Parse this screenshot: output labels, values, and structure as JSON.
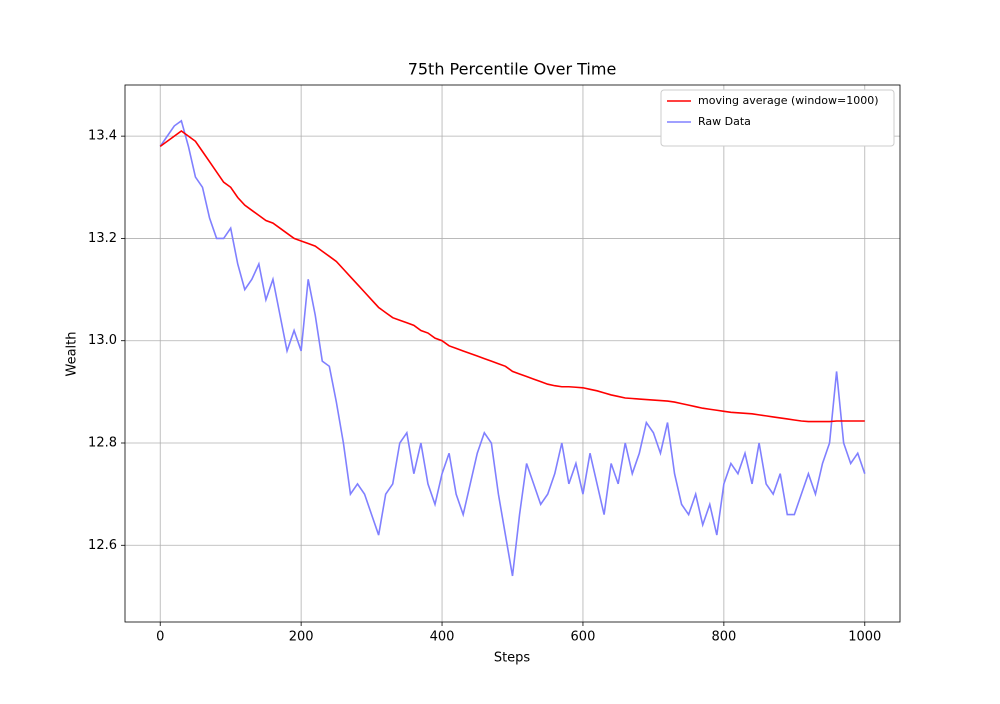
{
  "chart_data": {
    "type": "line",
    "title": "75th Percentile Over Time",
    "x_label": "Steps",
    "y_label": "Wealth",
    "x": [
      0,
      10,
      20,
      30,
      40,
      50,
      60,
      70,
      80,
      90,
      100,
      110,
      120,
      130,
      140,
      150,
      160,
      170,
      180,
      190,
      200,
      210,
      220,
      230,
      240,
      250,
      260,
      270,
      280,
      290,
      300,
      310,
      320,
      330,
      340,
      350,
      360,
      370,
      380,
      390,
      400,
      410,
      420,
      430,
      440,
      450,
      460,
      470,
      480,
      490,
      500,
      510,
      520,
      530,
      540,
      550,
      560,
      570,
      580,
      590,
      600,
      610,
      620,
      630,
      640,
      650,
      660,
      670,
      680,
      690,
      700,
      710,
      720,
      730,
      740,
      750,
      760,
      770,
      780,
      790,
      800,
      810,
      820,
      830,
      840,
      850,
      860,
      870,
      880,
      890,
      900,
      910,
      920,
      930,
      940,
      950,
      960,
      970,
      980,
      990,
      1000
    ],
    "series": [
      {
        "name": "moving average (window=1000)",
        "color": "#ff0000",
        "values": [
          13.38,
          13.39,
          13.4,
          13.41,
          13.4,
          13.39,
          13.37,
          13.35,
          13.33,
          13.31,
          13.3,
          13.28,
          13.265,
          13.255,
          13.245,
          13.235,
          13.23,
          13.22,
          13.21,
          13.2,
          13.195,
          13.19,
          13.185,
          13.175,
          13.165,
          13.155,
          13.14,
          13.125,
          13.11,
          13.095,
          13.08,
          13.065,
          13.055,
          13.045,
          13.04,
          13.035,
          13.03,
          13.02,
          13.015,
          13.005,
          13.0,
          12.99,
          12.985,
          12.98,
          12.975,
          12.97,
          12.965,
          12.96,
          12.955,
          12.95,
          12.94,
          12.935,
          12.93,
          12.925,
          12.92,
          12.915,
          12.912,
          12.91,
          12.91,
          12.909,
          12.908,
          12.905,
          12.902,
          12.898,
          12.894,
          12.891,
          12.888,
          12.887,
          12.886,
          12.885,
          12.884,
          12.883,
          12.882,
          12.88,
          12.877,
          12.874,
          12.871,
          12.868,
          12.866,
          12.864,
          12.862,
          12.86,
          12.859,
          12.858,
          12.857,
          12.855,
          12.853,
          12.851,
          12.849,
          12.847,
          12.845,
          12.843,
          12.842,
          12.842,
          12.842,
          12.842,
          12.843,
          12.843,
          12.843,
          12.843,
          12.843
        ]
      },
      {
        "name": "Raw Data",
        "color": "#8080ff",
        "values": [
          13.38,
          13.4,
          13.42,
          13.43,
          13.38,
          13.32,
          13.3,
          13.24,
          13.2,
          13.2,
          13.22,
          13.15,
          13.1,
          13.12,
          13.15,
          13.08,
          13.12,
          13.05,
          12.98,
          13.02,
          12.98,
          13.12,
          13.05,
          12.96,
          12.95,
          12.88,
          12.8,
          12.7,
          12.72,
          12.7,
          12.66,
          12.62,
          12.7,
          12.72,
          12.8,
          12.82,
          12.74,
          12.8,
          12.72,
          12.68,
          12.74,
          12.78,
          12.7,
          12.66,
          12.72,
          12.78,
          12.82,
          12.8,
          12.7,
          12.62,
          12.54,
          12.66,
          12.76,
          12.72,
          12.68,
          12.7,
          12.74,
          12.8,
          12.72,
          12.76,
          12.7,
          12.78,
          12.72,
          12.66,
          12.76,
          12.72,
          12.8,
          12.74,
          12.78,
          12.84,
          12.82,
          12.78,
          12.84,
          12.74,
          12.68,
          12.66,
          12.7,
          12.64,
          12.68,
          12.62,
          12.72,
          12.76,
          12.74,
          12.78,
          12.72,
          12.8,
          12.72,
          12.7,
          12.74,
          12.66,
          12.66,
          12.7,
          12.74,
          12.7,
          12.76,
          12.8,
          12.94,
          12.8,
          12.76,
          12.78,
          12.74
        ]
      }
    ],
    "xlim": [
      -50,
      1050
    ],
    "ylim": [
      12.45,
      13.5
    ],
    "xticks": [
      0,
      200,
      400,
      600,
      800,
      1000
    ],
    "yticks": [
      12.6,
      12.8,
      {
        "value": 13,
        "label": "13.0"
      },
      13.2,
      13.4
    ],
    "grid": true,
    "legend": "upper-right"
  }
}
